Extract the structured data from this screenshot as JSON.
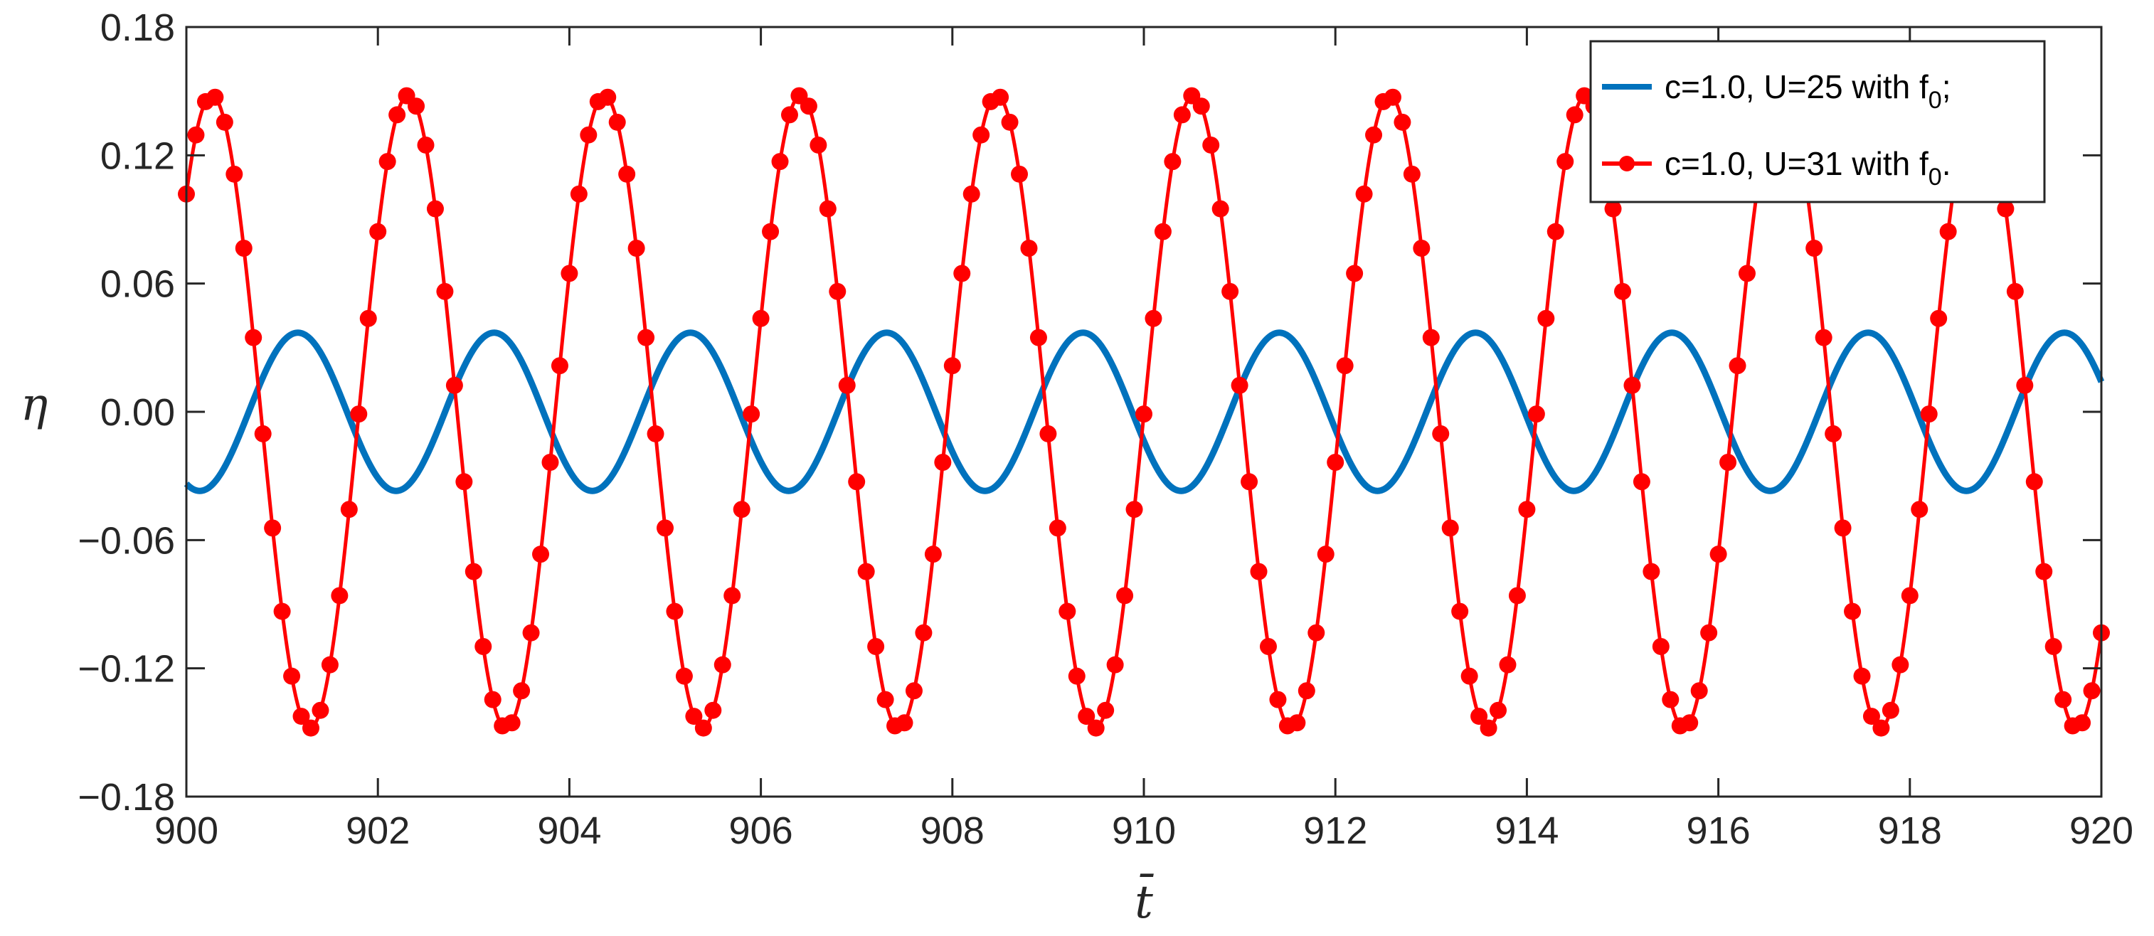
{
  "chart_data": {
    "type": "line",
    "title": "",
    "xlabel": "t̄",
    "ylabel": "η",
    "xlim": [
      900,
      920
    ],
    "ylim": [
      -0.18,
      0.18
    ],
    "x_ticks": [
      900,
      902,
      904,
      906,
      908,
      910,
      912,
      914,
      916,
      918,
      920
    ],
    "y_ticks": [
      -0.18,
      -0.12,
      -0.06,
      0.0,
      0.06,
      0.12,
      0.18
    ],
    "x_tick_labels": [
      "900",
      "902",
      "904",
      "906",
      "908",
      "910",
      "912",
      "914",
      "916",
      "918",
      "920"
    ],
    "y_tick_labels": [
      "−0.18",
      "−0.12",
      "−0.06",
      "0.00",
      "0.06",
      "0.12",
      "0.18"
    ],
    "grid": false,
    "legend_position": "top-right",
    "series": [
      {
        "label_main": "c=1.0, U=25 with f",
        "label_sub": "0",
        "label_end": ";",
        "color": "#0072BD",
        "marker": "none",
        "amplitude": 0.037,
        "period": 2.05,
        "x": [
          900.0,
          900.5,
          901.0,
          901.16,
          901.5,
          902.0,
          902.18,
          902.5,
          903.0,
          903.5,
          904.0,
          904.5,
          905.0,
          905.5,
          906.0,
          906.5,
          907.0,
          907.5,
          908.0,
          908.5,
          909.0,
          909.5,
          910.0,
          910.5,
          911.0,
          911.5,
          912.0,
          912.5,
          913.0,
          913.5,
          914.0,
          914.5,
          915.0,
          915.5,
          916.0,
          916.5,
          917.0,
          917.5,
          918.0,
          918.5,
          919.0,
          919.5,
          920.0
        ],
        "y": [
          -0.035,
          -0.012,
          0.033,
          0.037,
          0.022,
          -0.031,
          -0.037,
          -0.024,
          0.027,
          0.035,
          -0.009,
          -0.036,
          0.004,
          0.037,
          0.007,
          -0.033,
          -0.022,
          0.024,
          0.031,
          -0.012,
          -0.036,
          -0.002,
          0.036,
          0.014,
          -0.029,
          -0.027,
          0.019,
          0.034,
          -0.007,
          -0.037,
          -0.006,
          0.035,
          0.018,
          -0.026,
          -0.03,
          0.014,
          0.036,
          0.001,
          -0.036,
          -0.014,
          0.029,
          0.027,
          0.008
        ]
      },
      {
        "label_main": "c=1.0, U=31 with f",
        "label_sub": "0",
        "label_end": ".",
        "color": "#FF0000",
        "marker": "circle",
        "amplitude": 0.148,
        "period": 2.05,
        "x": [
          900.0,
          900.25,
          900.5,
          900.75,
          901.0,
          901.25,
          901.5,
          901.75,
          902.0,
          902.25,
          902.5,
          902.75,
          903.0,
          903.25,
          903.5,
          903.75,
          904.0,
          904.25,
          904.5,
          904.75,
          905.0,
          905.25,
          905.5,
          905.75,
          906.0,
          906.25,
          906.5,
          906.75,
          907.0,
          907.25,
          907.5,
          907.75,
          908.0,
          908.25,
          908.5,
          908.75,
          909.0,
          909.25,
          909.5,
          909.75,
          910.0,
          910.25,
          910.5,
          910.75,
          911.0,
          911.25,
          911.5,
          911.75,
          912.0,
          912.25,
          912.5,
          912.75,
          913.0,
          913.25,
          913.5,
          913.75,
          914.0,
          914.25,
          914.5,
          914.75,
          915.0,
          915.25,
          915.5,
          915.75,
          916.0,
          916.25,
          916.5,
          916.75,
          917.0,
          917.25,
          917.5,
          917.75,
          918.0,
          918.25,
          918.5,
          918.75,
          919.0,
          919.25,
          919.5,
          919.75,
          920.0
        ],
        "y": [
          0.104,
          0.148,
          0.121,
          0.016,
          -0.098,
          -0.148,
          -0.121,
          -0.017,
          0.099,
          0.148,
          0.11,
          -0.004,
          -0.111,
          -0.147,
          -0.084,
          0.031,
          0.13,
          0.144,
          0.068,
          -0.049,
          -0.139,
          -0.138,
          -0.045,
          0.072,
          0.145,
          0.128,
          0.027,
          -0.087,
          -0.148,
          -0.117,
          -0.007,
          0.104,
          0.148,
          0.098,
          -0.013,
          -0.117,
          -0.146,
          -0.081,
          0.034,
          0.129,
          0.142,
          0.061,
          -0.056,
          -0.14,
          -0.135,
          -0.039,
          0.077,
          0.145,
          0.124,
          0.018,
          -0.094,
          -0.148,
          -0.11,
          0.004,
          0.111,
          0.147,
          0.089,
          -0.025,
          -0.126,
          -0.144,
          -0.068,
          0.049,
          0.137,
          0.138,
          0.048,
          -0.069,
          -0.145,
          -0.128,
          -0.027,
          0.087,
          0.148,
          0.115,
          0.007,
          -0.104,
          -0.148,
          -0.095,
          0.016,
          0.119,
          0.146,
          0.079,
          -0.081
        ]
      }
    ]
  }
}
